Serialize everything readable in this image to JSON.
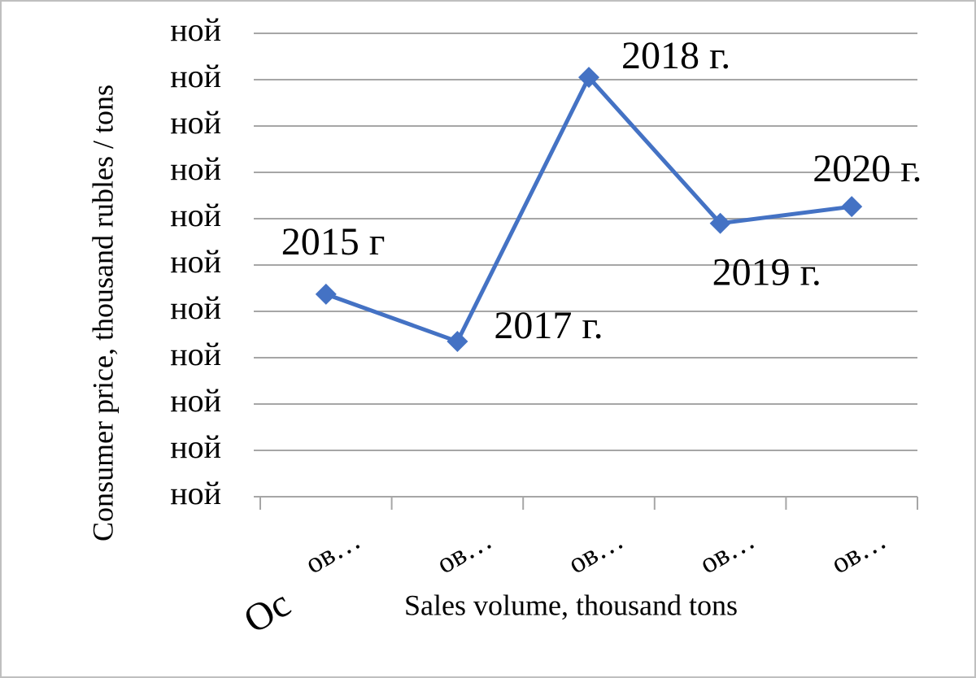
{
  "chart_data": {
    "type": "line",
    "y_label": "Consumer price, thousand rubles / tons",
    "x_label": "Sales volume, thousand tons",
    "annotation": "Ос",
    "categories": [
      "ов…",
      "ов…",
      "ов…",
      "ов…",
      "ов…"
    ],
    "series": [
      {
        "color": "#4472c4",
        "values": [
          4.37,
          3.35,
          9.05,
          5.9,
          6.26
        ]
      }
    ],
    "point_labels": [
      "2015 г",
      "2017 г.",
      "2018 г.",
      "2019 г.",
      "2020 г."
    ],
    "ylim": [
      0,
      10
    ],
    "yticks": [
      {
        "value": 0,
        "label": "ной"
      },
      {
        "value": 1,
        "label": "ной"
      },
      {
        "value": 2,
        "label": "ной"
      },
      {
        "value": 3,
        "label": "ной"
      },
      {
        "value": 4,
        "label": "ной"
      },
      {
        "value": 5,
        "label": "ной"
      },
      {
        "value": 6,
        "label": "ной"
      },
      {
        "value": 7,
        "label": "ной"
      },
      {
        "value": 8,
        "label": "ной"
      },
      {
        "value": 9,
        "label": "ной"
      },
      {
        "value": 10,
        "label": "ной"
      }
    ],
    "grid": true
  }
}
